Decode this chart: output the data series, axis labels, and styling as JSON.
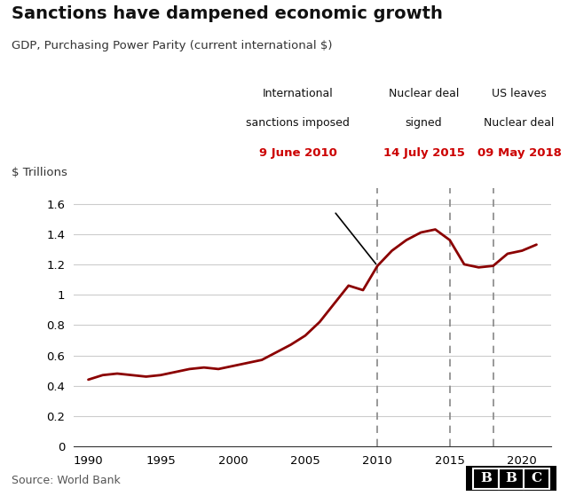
{
  "title": "Sanctions have dampened economic growth",
  "subtitle": "GDP, Purchasing Power Parity (current international $)",
  "ylabel": "$ Trillions",
  "source": "Source: World Bank",
  "line_color": "#8B0000",
  "line_width": 2.0,
  "xlim": [
    1989,
    2022
  ],
  "ylim": [
    0,
    1.7
  ],
  "yticks": [
    0,
    0.2,
    0.4,
    0.6,
    0.8,
    1.0,
    1.2,
    1.4,
    1.6
  ],
  "xticks": [
    1990,
    1995,
    2000,
    2005,
    2010,
    2015,
    2020
  ],
  "years": [
    1990,
    1991,
    1992,
    1993,
    1994,
    1995,
    1996,
    1997,
    1998,
    1999,
    2000,
    2001,
    2002,
    2003,
    2004,
    2005,
    2006,
    2007,
    2008,
    2009,
    2010,
    2011,
    2012,
    2013,
    2014,
    2015,
    2016,
    2017,
    2018,
    2019,
    2020,
    2021
  ],
  "gdp": [
    0.44,
    0.47,
    0.48,
    0.47,
    0.46,
    0.47,
    0.49,
    0.51,
    0.52,
    0.51,
    0.53,
    0.55,
    0.57,
    0.62,
    0.67,
    0.73,
    0.82,
    0.94,
    1.06,
    1.03,
    1.19,
    1.29,
    1.36,
    1.41,
    1.43,
    1.36,
    1.2,
    1.18,
    1.19,
    1.27,
    1.29,
    1.33
  ],
  "vline_2010": 2010,
  "vline_2015": 2015,
  "vline_2018": 2018,
  "annot_sanctions_label1": "International",
  "annot_sanctions_label2": "sanctions imposed",
  "annot_sanctions_date": "9 June 2010",
  "annot_nuclear_label1": "Nuclear deal",
  "annot_nuclear_label2": "signed",
  "annot_nuclear_date": "14 July 2015",
  "annot_us_label1": "US leaves",
  "annot_us_label2": "Nuclear deal",
  "annot_us_date": "09 May 2018",
  "date_color": "#cc0000",
  "annotation_color": "#111111",
  "grid_color": "#cccccc",
  "background_color": "#ffffff"
}
